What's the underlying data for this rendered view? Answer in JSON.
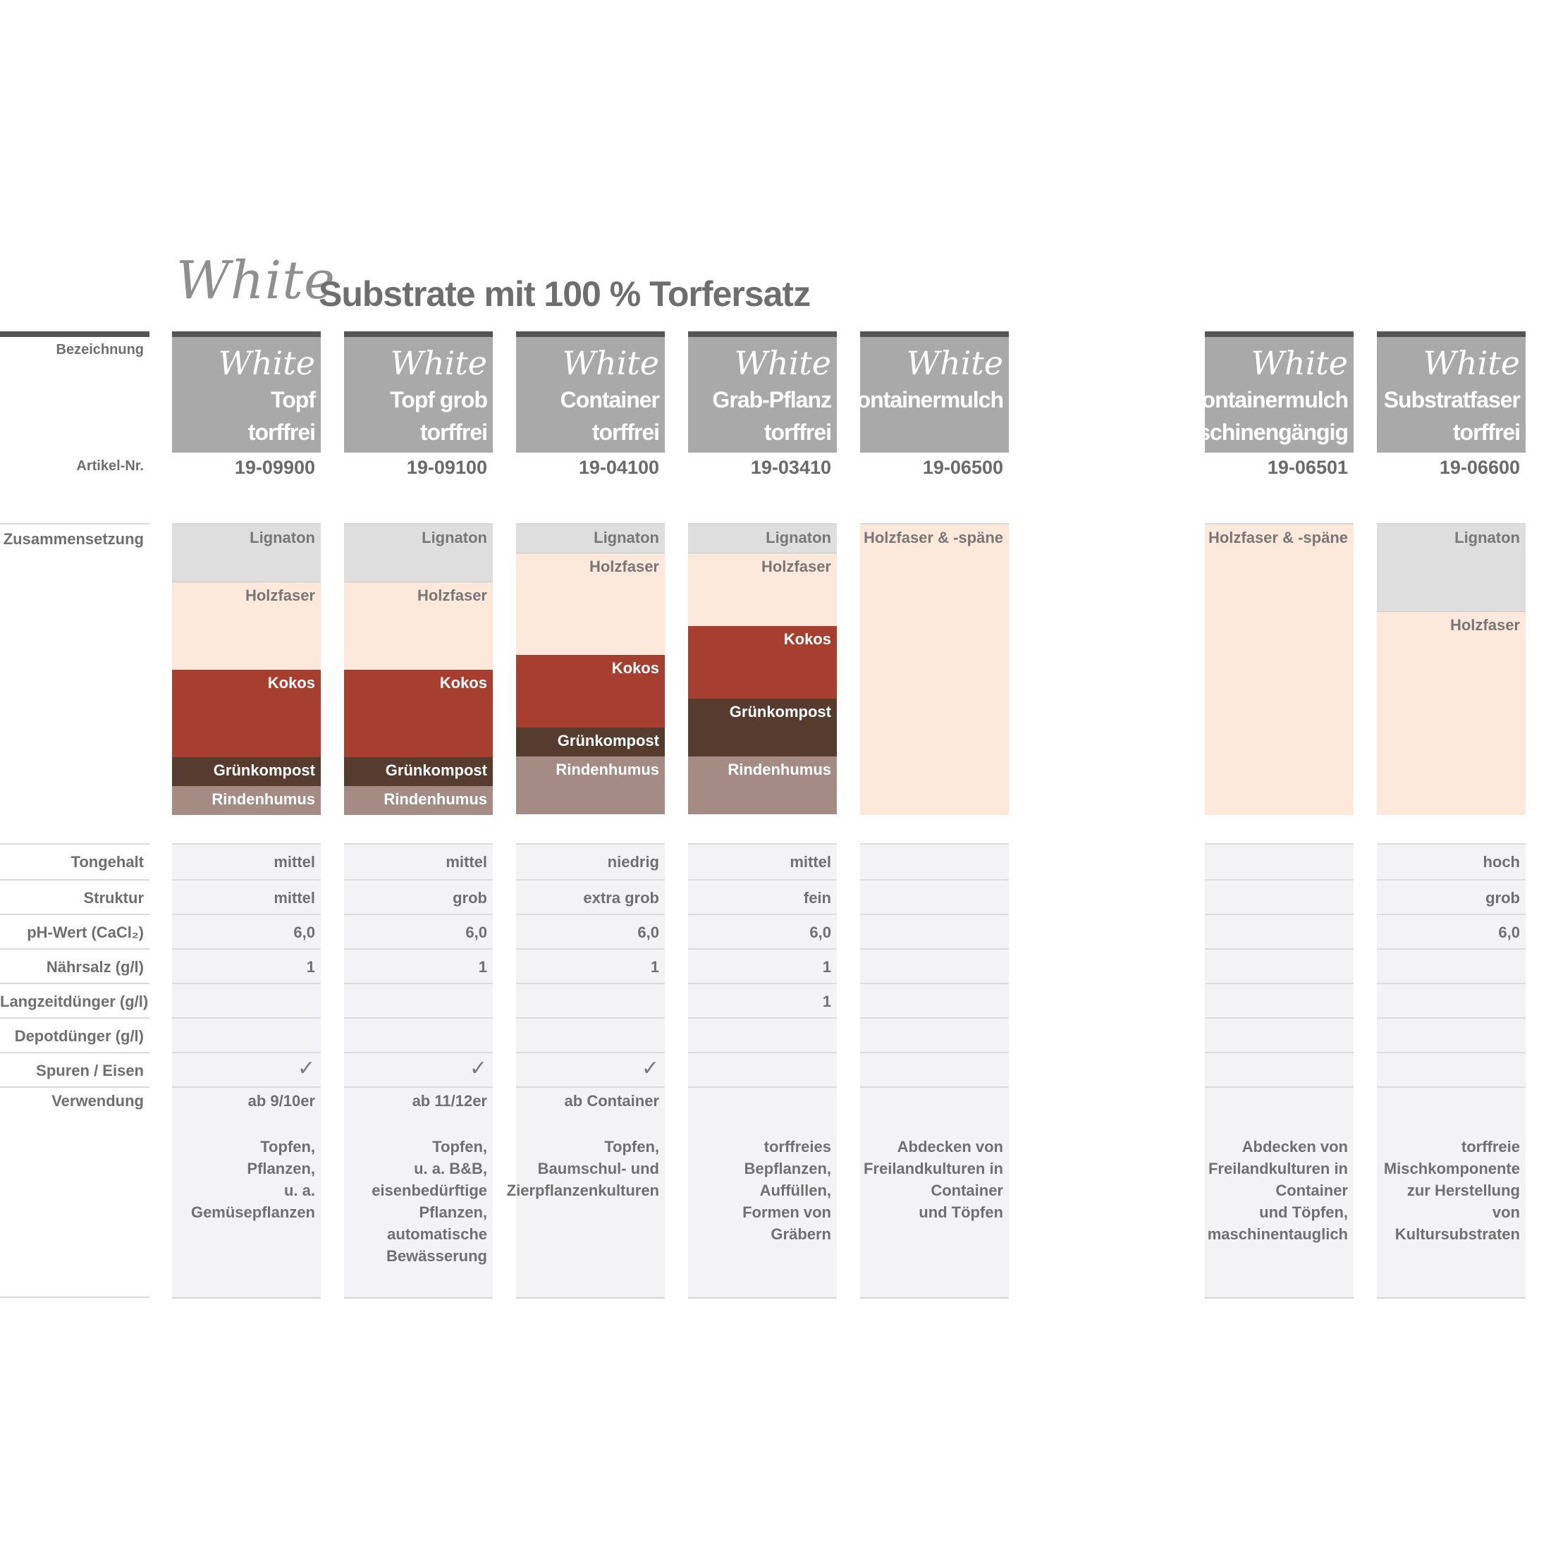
{
  "title": {
    "script": "White",
    "main": "Substrate mit 100 % Torfersatz"
  },
  "row_labels": {
    "designation": "Bezeichnung",
    "article": "Artikel-Nr.",
    "composition": "Zusammensetzung",
    "clay": "Tongehalt",
    "structure": "Struktur",
    "ph": "pH-Wert (CaCl₂)",
    "nutrient": "Nährsalz (g/l)",
    "longterm": "Langzeitdünger (g/l)",
    "depot": "Depotdünger (g/l)",
    "trace": "Spuren / Eisen",
    "use": "Verwendung"
  },
  "layer_colors": {
    "Lignaton": "#dedede",
    "Holzfaser": "#fde9dc",
    "Holzfaser & -späne": "#fde9dc",
    "Kokos": "#a63f2f",
    "Grünkompost": "#563b2f",
    "Rindenhumus": "#a48c84"
  },
  "layer_text_colors": {
    "Lignaton": "#777777",
    "Holzfaser": "#777777",
    "Holzfaser & -späne": "#777777",
    "Kokos": "#ffffff",
    "Grünkompost": "#ffffff",
    "Rindenhumus": "#ffffff"
  },
  "products": [
    {
      "brand": "White",
      "name": "Topf\ntorffrei",
      "article": "19-09900",
      "layers": [
        [
          "Lignaton",
          0.2
        ],
        [
          "Holzfaser",
          0.3
        ],
        [
          "Kokos",
          0.3
        ],
        [
          "Grünkompost",
          0.1
        ],
        [
          "Rindenhumus",
          0.1
        ]
      ],
      "clay": "mittel",
      "structure": "mittel",
      "ph": "6,0",
      "nutrient": "1",
      "longterm": "",
      "depot": "",
      "trace": "✓",
      "use_short": "ab 9/10er",
      "use_text": "Topfen,\nPflanzen,\nu. a. Gemüsepflanzen"
    },
    {
      "brand": "White",
      "name": "Topf grob\ntorffrei",
      "article": "19-09100",
      "layers": [
        [
          "Lignaton",
          0.2
        ],
        [
          "Holzfaser",
          0.3
        ],
        [
          "Kokos",
          0.3
        ],
        [
          "Grünkompost",
          0.1
        ],
        [
          "Rindenhumus",
          0.1
        ]
      ],
      "clay": "mittel",
      "structure": "grob",
      "ph": "6,0",
      "nutrient": "1",
      "longterm": "",
      "depot": "",
      "trace": "✓",
      "use_short": "ab 11/12er",
      "use_text": "Topfen,\nu. a. B&B,\neisenbedürftige\nPflanzen,\nautomatische\nBewässerung"
    },
    {
      "brand": "White",
      "name": "Container\ntorffrei",
      "article": "19-04100",
      "layers": [
        [
          "Lignaton",
          0.1
        ],
        [
          "Holzfaser",
          0.35
        ],
        [
          "Kokos",
          0.25
        ],
        [
          "Grünkompost",
          0.1
        ],
        [
          "Rindenhumus",
          0.2
        ]
      ],
      "clay": "niedrig",
      "structure": "extra grob",
      "ph": "6,0",
      "nutrient": "1",
      "longterm": "",
      "depot": "",
      "trace": "✓",
      "use_short": "ab Container",
      "use_text": "Topfen,\nBaumschul- und\nZierpflanzenkulturen"
    },
    {
      "brand": "White",
      "name": "Grab-Pflanz\ntorffrei",
      "article": "19-03410",
      "layers": [
        [
          "Lignaton",
          0.1
        ],
        [
          "Holzfaser",
          0.25
        ],
        [
          "Kokos",
          0.25
        ],
        [
          "Grünkompost",
          0.2
        ],
        [
          "Rindenhumus",
          0.2
        ]
      ],
      "clay": "mittel",
      "structure": "fein",
      "ph": "6,0",
      "nutrient": "1",
      "longterm": "1",
      "depot": "",
      "trace": "",
      "use_short": "",
      "use_text": "torffreies Bepflanzen,\nAuffüllen,\nFormen von Gräbern"
    },
    {
      "brand": "White",
      "name": "Containermulch",
      "article": "19-06500",
      "layers": [
        [
          "Holzfaser & -späne",
          1.0
        ]
      ],
      "clay": "",
      "structure": "",
      "ph": "",
      "nutrient": "",
      "longterm": "",
      "depot": "",
      "trace": "",
      "use_short": "",
      "use_text": "Abdecken von\nFreilandkulturen in\nContainer\nund Töpfen"
    },
    {
      "brand": "White",
      "name": "Containermulch\nmaschinengängig",
      "article": "19-06501",
      "layers": [
        [
          "Holzfaser & -späne",
          1.0
        ]
      ],
      "clay": "",
      "structure": "",
      "ph": "",
      "nutrient": "",
      "longterm": "",
      "depot": "",
      "trace": "",
      "use_short": "",
      "use_text": "Abdecken von\nFreilandkulturen in\nContainer\nund Töpfen,\nmaschinentauglich"
    },
    {
      "brand": "White",
      "name": "Substratfaser\ntorffrei",
      "article": "19-06600",
      "layers": [
        [
          "Lignaton",
          0.3
        ],
        [
          "Holzfaser",
          0.7
        ]
      ],
      "clay": "hoch",
      "structure": "grob",
      "ph": "6,0",
      "nutrient": "",
      "longterm": "",
      "depot": "",
      "trace": "",
      "use_short": "",
      "use_text": "torffreie\nMischkomponente\nzur Herstellung von\nKultursubstraten"
    }
  ]
}
